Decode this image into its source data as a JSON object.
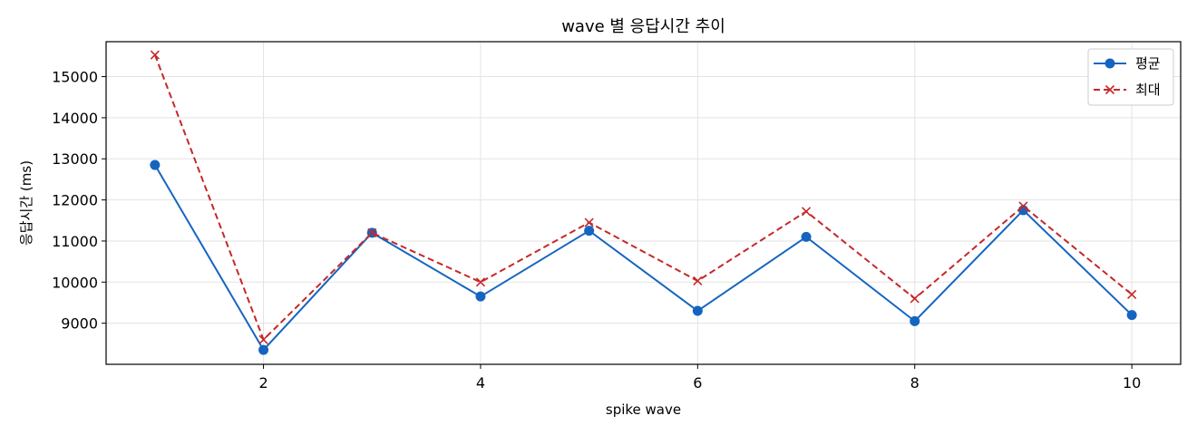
{
  "chart_data": {
    "type": "line",
    "title": "wave 별 응답시간 추이",
    "xlabel": "spike wave",
    "ylabel": "응답시간 (ms)",
    "x": [
      1,
      2,
      3,
      4,
      5,
      6,
      7,
      8,
      9,
      10
    ],
    "xticks": [
      2,
      4,
      6,
      8,
      10
    ],
    "yticks": [
      9000,
      10000,
      11000,
      12000,
      13000,
      14000,
      15000
    ],
    "xlim": [
      0.55,
      10.45
    ],
    "ylim": [
      8000,
      15850
    ],
    "grid": true,
    "legend_position": "top-right",
    "series": [
      {
        "name": "평균",
        "values": [
          12850,
          8350,
          11200,
          9650,
          11250,
          9300,
          11100,
          9050,
          11750,
          9200
        ],
        "color": "#1565c0",
        "line_style": "solid",
        "marker": "circle"
      },
      {
        "name": "최대",
        "values": [
          15530,
          8600,
          11200,
          10000,
          11450,
          10030,
          11720,
          9600,
          11850,
          9700
        ],
        "color": "#c62828",
        "line_style": "dashed",
        "marker": "x"
      }
    ]
  }
}
